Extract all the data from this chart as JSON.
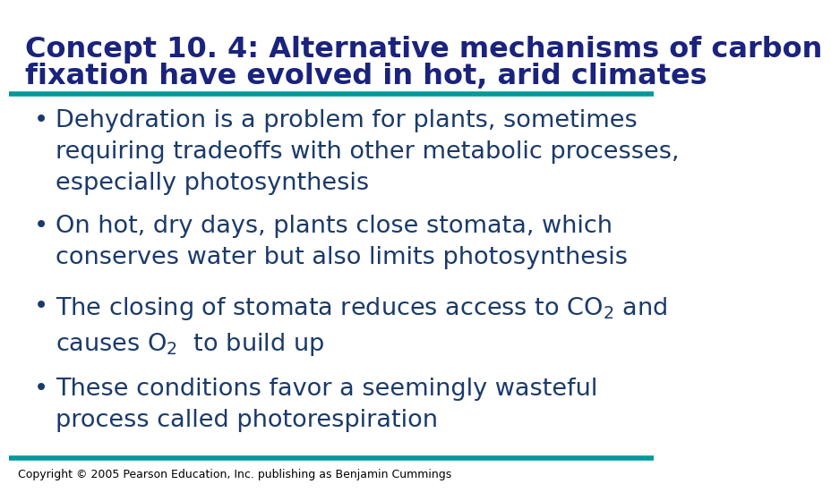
{
  "title_line1": "Concept 10. 4: Alternative mechanisms of carbon",
  "title_line2": "fixation have evolved in hot, arid climates",
  "title_color": "#1a237e",
  "title_fontsize": 23,
  "teal_color": "#009999",
  "bg_color": "#ffffff",
  "bullet_color": "#1a3a6b",
  "bullet_fontsize": 19.5,
  "copyright_text": "Copyright © 2005 Pearson Education, Inc. publishing as Benjamin Cummings",
  "copyright_fontsize": 9,
  "bullet1": "Dehydration is a problem for plants, sometimes\nrequiring tradeoffs with other metabolic processes,\nespecially photosynthesis",
  "bullet2": "On hot, dry days, plants close stomata, which\nconserves water but also limits photosynthesis",
  "bullet3_p1": "The closing of stomata reduces access to CO",
  "bullet3_sub1": "2",
  "bullet3_p2": " and\ncauses O",
  "bullet3_sub2": "2",
  "bullet3_p3": "  to build up",
  "bullet4": "These conditions favor a seemingly wasteful\nprocess called photorespiration"
}
